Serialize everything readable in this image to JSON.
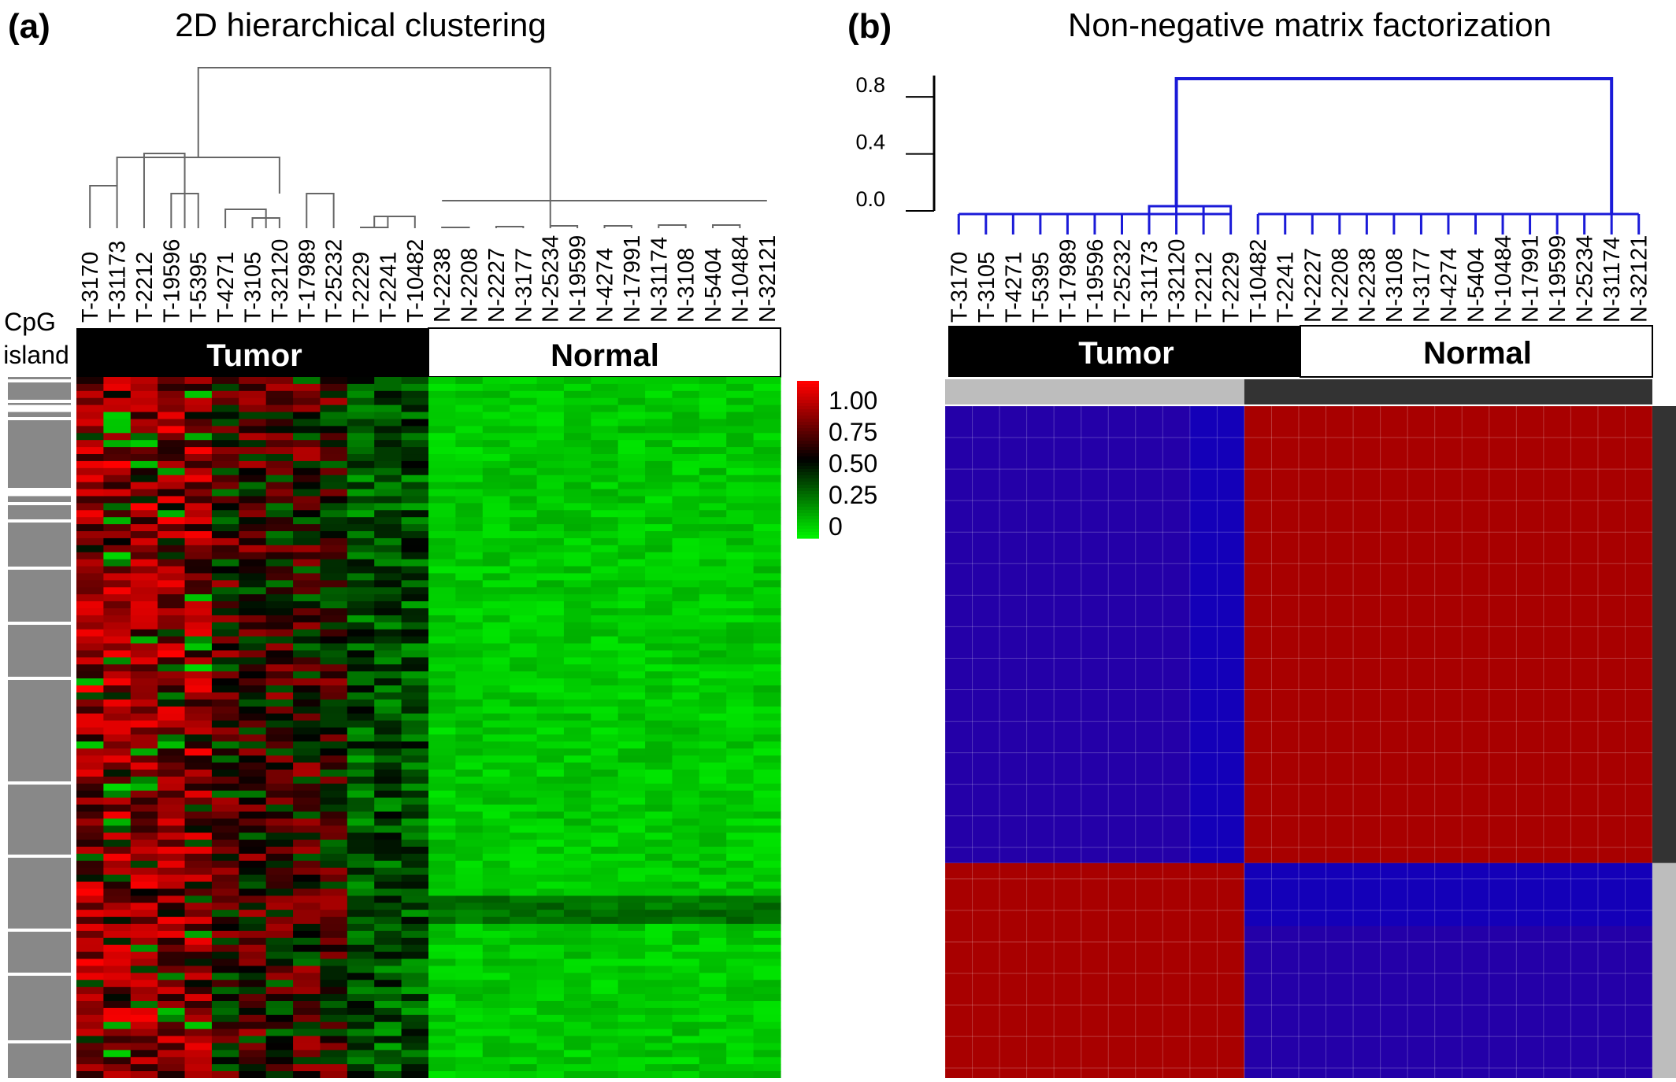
{
  "panel_a": {
    "letter": "(a)",
    "title": "2D hierarchical clustering",
    "cpg_label_line1": "CpG",
    "cpg_label_line2": "island",
    "group_tumor": "Tumor",
    "group_normal": "Normal",
    "colors": {
      "low": "#00f000",
      "mid": "#000000",
      "high": "#ff0000"
    }
  },
  "panel_b": {
    "letter": "(b)",
    "title": "Non-negative matrix factorization",
    "group_tumor": "Tumor",
    "group_normal": "Normal",
    "colors": {
      "cluster1_block": "#2400a8",
      "cluster2_block": "#a80000",
      "dendrogram": "#1a1ad8"
    }
  },
  "chart_data": [
    {
      "type": "heatmap",
      "title": "2D hierarchical clustering",
      "columns": [
        "T-3170",
        "T-31173",
        "T-2212",
        "T-19596",
        "T-5395",
        "T-4271",
        "T-3105",
        "T-32120",
        "T-17989",
        "T-25232",
        "T-2229",
        "T-2241",
        "T-10482",
        "N-2238",
        "N-2208",
        "N-2227",
        "N-3177",
        "N-25234",
        "N-19599",
        "N-4274",
        "N-17991",
        "N-31174",
        "N-3108",
        "N-5404",
        "N-10484",
        "N-32121"
      ],
      "column_groups": [
        {
          "name": "Tumor",
          "count": 13
        },
        {
          "name": "Normal",
          "count": 13
        }
      ],
      "row_count": 100,
      "color_scale": {
        "ticks": [
          "1.00",
          "0.75",
          "0.50",
          "0.25",
          "0"
        ],
        "low": "#00f000",
        "mid": "#000000",
        "high": "#ff0000"
      },
      "cpg_island_rows": [
        0,
        1,
        2,
        3,
        5,
        6,
        7,
        8,
        9,
        10,
        11,
        12,
        13,
        14,
        15,
        17,
        18,
        19,
        20,
        21,
        22,
        23,
        24,
        25,
        26,
        27,
        28,
        29,
        30,
        31,
        32,
        33,
        34,
        35,
        36,
        37,
        38,
        39,
        40,
        41,
        42,
        43,
        44,
        45,
        46,
        47,
        48,
        49,
        50,
        51,
        52,
        53,
        54,
        55,
        56,
        57,
        58,
        59,
        60,
        61,
        62,
        63,
        64,
        65,
        66,
        67,
        68,
        69,
        70,
        71,
        72,
        73,
        74,
        75,
        76,
        77,
        78,
        79,
        80,
        81,
        82,
        83,
        84,
        85,
        86,
        87,
        88,
        89,
        90,
        91,
        92,
        93,
        94,
        95,
        96,
        97,
        98,
        99
      ]
    },
    {
      "type": "heatmap",
      "title": "Non-negative matrix factorization",
      "columns": [
        "T-3170",
        "T-3105",
        "T-4271",
        "T-5395",
        "T-17989",
        "T-19596",
        "T-25232",
        "T-31173",
        "T-32120",
        "T-2212",
        "T-2229",
        "T-10482",
        "T-2241",
        "N-2227",
        "N-2208",
        "N-2238",
        "N-3108",
        "N-3177",
        "N-4274",
        "N-5404",
        "N-10484",
        "N-17991",
        "N-19599",
        "N-25234",
        "N-31174",
        "N-32121"
      ],
      "column_groups": [
        {
          "name": "Tumor",
          "count": 13
        },
        {
          "name": "Normal",
          "count": 13
        }
      ],
      "dendrogram_axis": {
        "ticks": [
          "0.8",
          "0.4",
          "0.0"
        ],
        "ylim": [
          0,
          0.95
        ]
      },
      "consensus_clusters": [
        {
          "members": 11,
          "value": 1
        },
        {
          "members": 15,
          "value": 0
        }
      ]
    }
  ]
}
